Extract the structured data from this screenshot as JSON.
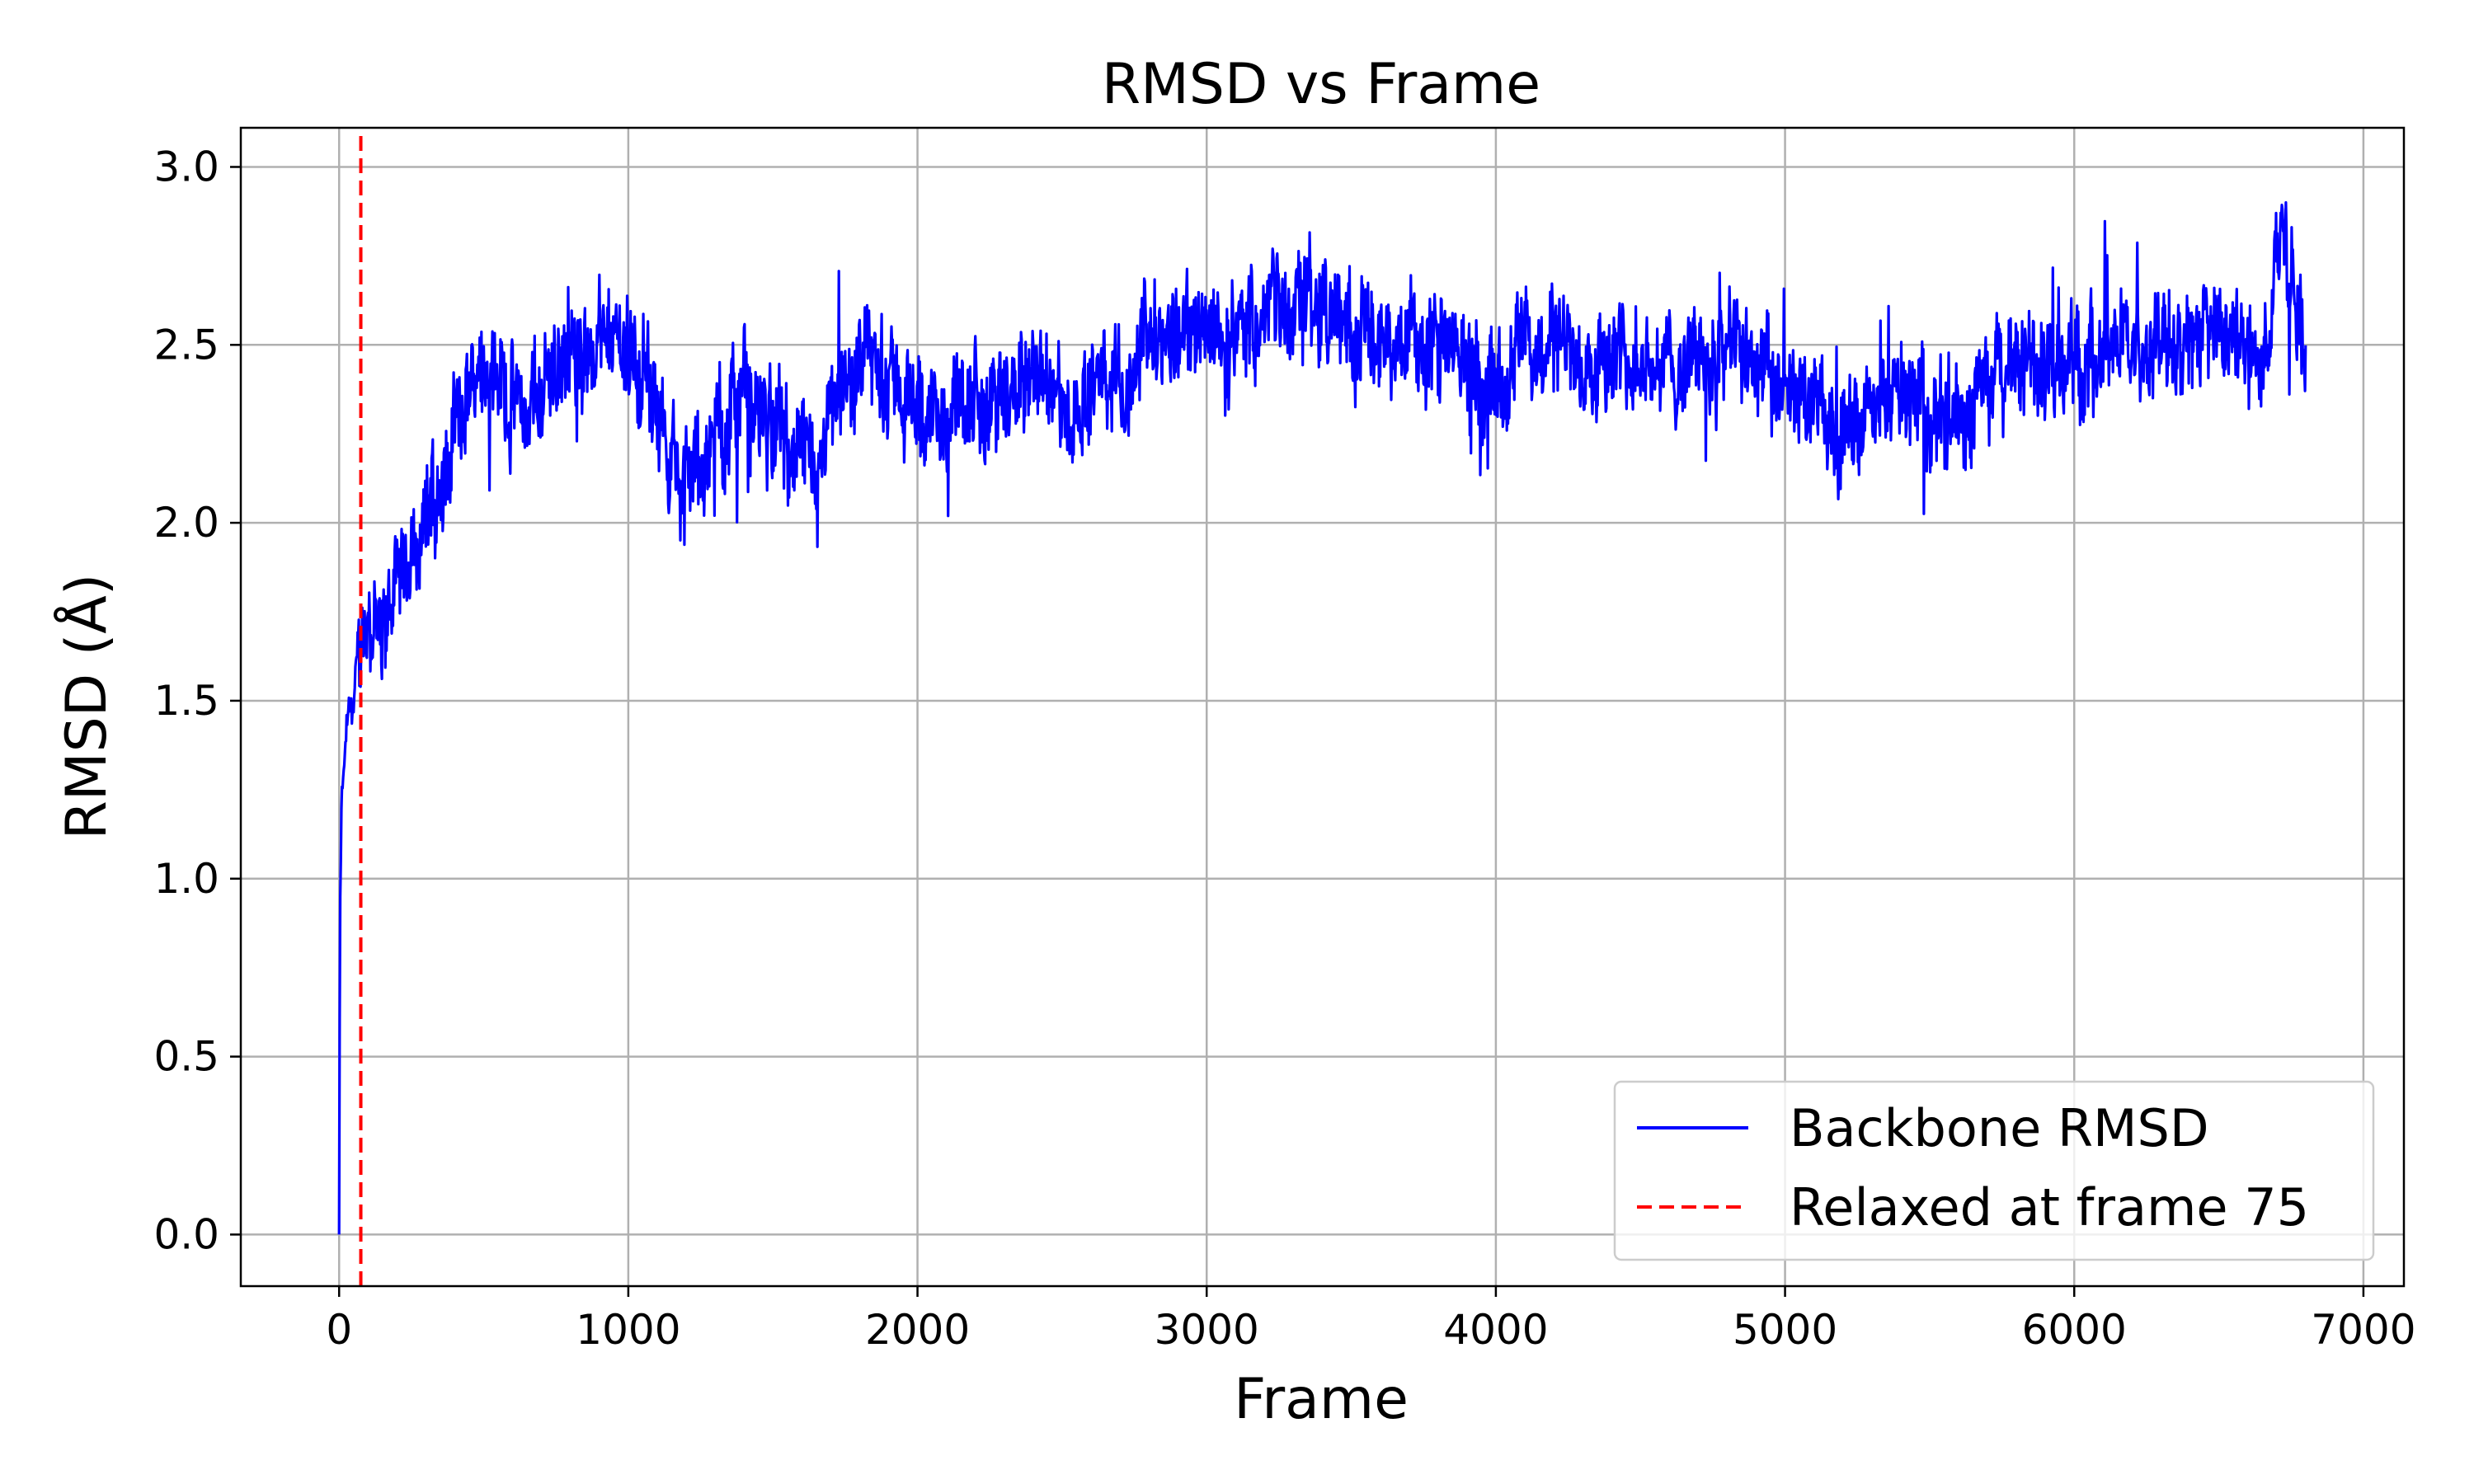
{
  "chart_data": {
    "type": "line",
    "title": "RMSD vs Frame",
    "xlabel": "Frame",
    "ylabel": "RMSD (Å)",
    "xlim": [
      -340,
      7140
    ],
    "ylim": [
      -0.145,
      3.11
    ],
    "xticks": [
      0,
      1000,
      2000,
      3000,
      4000,
      5000,
      6000,
      7000
    ],
    "yticks": [
      0.0,
      0.5,
      1.0,
      1.5,
      2.0,
      2.5,
      3.0
    ],
    "xtick_labels": [
      "0",
      "1000",
      "2000",
      "3000",
      "4000",
      "5000",
      "6000",
      "7000"
    ],
    "ytick_labels": [
      "0.0",
      "0.5",
      "1.0",
      "1.5",
      "2.0",
      "2.5",
      "3.0"
    ],
    "grid": true,
    "legend_position": "bottom-right",
    "series": [
      {
        "name": "Backbone RMSD",
        "color": "#0000ff",
        "style": "solid",
        "x": [
          0,
          3,
          8,
          15,
          25,
          40,
          60,
          80,
          100,
          130,
          160,
          200,
          250,
          300,
          350,
          400,
          450,
          500,
          550,
          600,
          650,
          700,
          750,
          800,
          850,
          900,
          950,
          1000,
          1050,
          1100,
          1150,
          1200,
          1250,
          1300,
          1350,
          1400,
          1450,
          1500,
          1550,
          1600,
          1650,
          1700,
          1750,
          1800,
          1850,
          1900,
          1950,
          2000,
          2100,
          2200,
          2300,
          2400,
          2500,
          2600,
          2700,
          2800,
          2900,
          3000,
          3100,
          3200,
          3300,
          3400,
          3500,
          3600,
          3700,
          3800,
          3900,
          4000,
          4100,
          4200,
          4300,
          4400,
          4500,
          4600,
          4700,
          4800,
          4900,
          5000,
          5100,
          5200,
          5300,
          5400,
          5500,
          5600,
          5700,
          5800,
          5900,
          6000,
          6100,
          6200,
          6300,
          6400,
          6500,
          6600,
          6650,
          6700,
          6730,
          6760,
          6800
        ],
        "y": [
          0.0,
          0.9,
          1.15,
          1.25,
          1.35,
          1.45,
          1.55,
          1.65,
          1.72,
          1.75,
          1.7,
          1.85,
          1.95,
          2.0,
          2.1,
          2.2,
          2.4,
          2.5,
          2.45,
          2.35,
          2.3,
          2.4,
          2.45,
          2.5,
          2.45,
          2.5,
          2.45,
          2.5,
          2.45,
          2.35,
          2.2,
          2.1,
          2.2,
          2.25,
          2.3,
          2.35,
          2.3,
          2.25,
          2.2,
          2.15,
          2.05,
          2.25,
          2.35,
          2.4,
          2.45,
          2.4,
          2.35,
          2.3,
          2.3,
          2.35,
          2.35,
          2.4,
          2.35,
          2.35,
          2.4,
          2.5,
          2.55,
          2.55,
          2.5,
          2.6,
          2.65,
          2.6,
          2.55,
          2.5,
          2.55,
          2.5,
          2.45,
          2.45,
          2.5,
          2.5,
          2.45,
          2.5,
          2.5,
          2.45,
          2.45,
          2.5,
          2.4,
          2.35,
          2.3,
          2.3,
          2.3,
          2.35,
          2.3,
          2.35,
          2.4,
          2.45,
          2.45,
          2.45,
          2.5,
          2.5,
          2.5,
          2.5,
          2.55,
          2.55,
          2.5,
          2.7,
          2.85,
          2.65,
          2.45
        ]
      },
      {
        "name": "Relaxed at frame 75",
        "color": "#ff0000",
        "style": "dashed",
        "x": [
          75,
          75
        ],
        "y": [
          -0.145,
          3.11
        ]
      }
    ]
  }
}
